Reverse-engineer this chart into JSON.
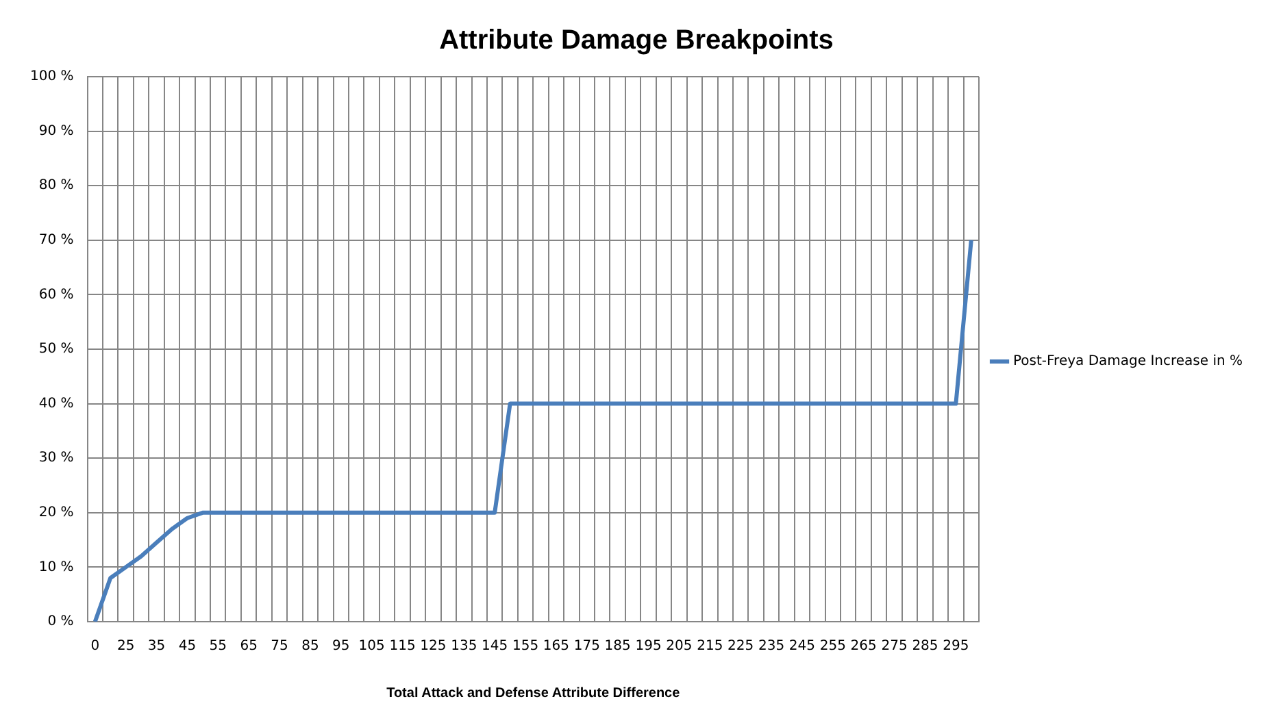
{
  "chart_data": {
    "type": "line",
    "title": "Attribute Damage Breakpoints",
    "xlabel": "Total Attack and Defense Attribute Difference",
    "categories": [
      "0",
      null,
      "25",
      null,
      "35",
      null,
      "45",
      null,
      "55",
      null,
      "65",
      null,
      "75",
      null,
      "85",
      null,
      "95",
      null,
      "105",
      null,
      "115",
      null,
      "125",
      null,
      "135",
      null,
      "145",
      null,
      "155",
      null,
      "165",
      null,
      "175",
      null,
      "185",
      null,
      "195",
      null,
      "205",
      null,
      "215",
      null,
      "225",
      null,
      "235",
      null,
      "245",
      null,
      "255",
      null,
      "265",
      null,
      "275",
      null,
      "285",
      null,
      "295",
      null
    ],
    "series": [
      {
        "name": "Post-Freya Damage Increase in %",
        "color": "#4a7ebb",
        "values": [
          0,
          8,
          10,
          12,
          14.5,
          17,
          19,
          20,
          20,
          20,
          20,
          20,
          20,
          20,
          20,
          20,
          20,
          20,
          20,
          20,
          20,
          20,
          20,
          20,
          20,
          20,
          20,
          40,
          40,
          40,
          40,
          40,
          40,
          40,
          40,
          40,
          40,
          40,
          40,
          40,
          40,
          40,
          40,
          40,
          40,
          40,
          40,
          40,
          40,
          40,
          40,
          40,
          40,
          40,
          40,
          40,
          40,
          70
        ]
      }
    ],
    "ylim": [
      0,
      100
    ],
    "yticks": [
      {
        "value": 0,
        "label": "0 %"
      },
      {
        "value": 10,
        "label": "10 %"
      },
      {
        "value": 20,
        "label": "20 %"
      },
      {
        "value": 30,
        "label": "30 %"
      },
      {
        "value": 40,
        "label": "40 %"
      },
      {
        "value": 50,
        "label": "50 %"
      },
      {
        "value": 60,
        "label": "60 %"
      },
      {
        "value": 70,
        "label": "70 %"
      },
      {
        "value": 80,
        "label": "80 %"
      },
      {
        "value": 90,
        "label": "90 %"
      },
      {
        "value": 100,
        "label": "100 %"
      }
    ],
    "grid": true,
    "legend": "right",
    "marker": "none",
    "line_style": "solid"
  }
}
